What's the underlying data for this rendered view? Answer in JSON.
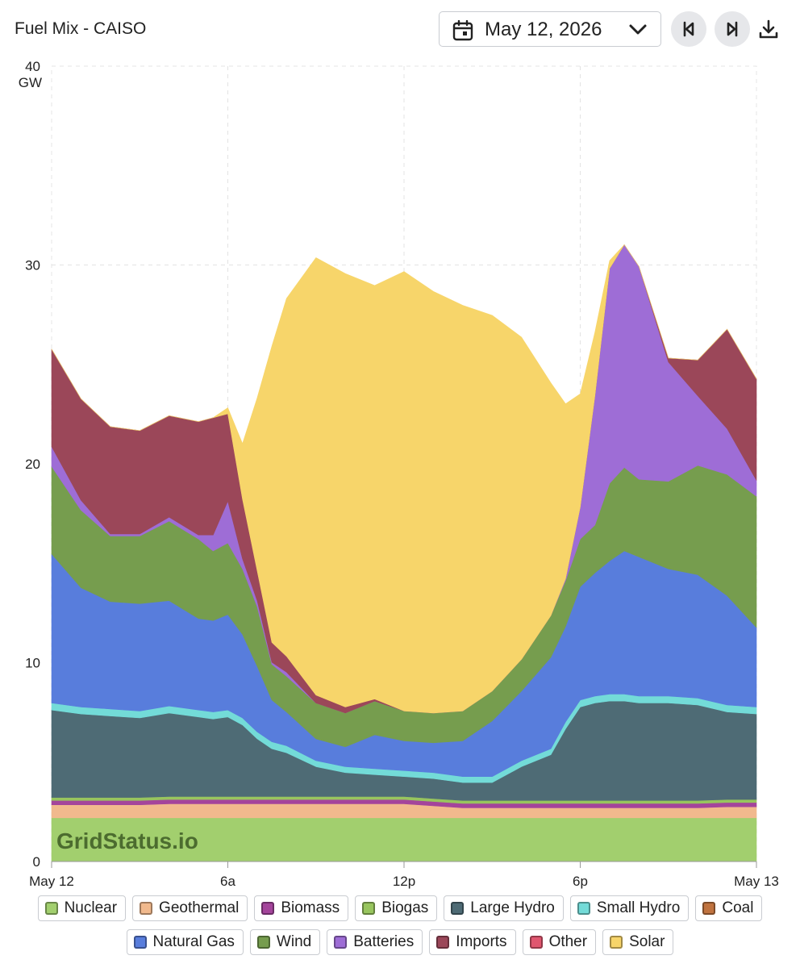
{
  "header": {
    "title": "Fuel Mix - CAISO",
    "date": "May 12, 2026"
  },
  "icons": {
    "calendar": "calendar-icon",
    "dropdown": "chevron-down-icon",
    "previous": "triangle-left-icon",
    "next": "triangle-right-icon",
    "download": "download-icon"
  },
  "watermark": "GridStatus.io",
  "chart_data": {
    "type": "area",
    "stacked": true,
    "title": "",
    "xlabel": "",
    "ylabel": "GW",
    "xlim": [
      0,
      24
    ],
    "ylim": [
      0,
      40
    ],
    "grid": true,
    "legend_position": "bottom",
    "y_ticks": [
      {
        "value": 0,
        "label": "0"
      },
      {
        "value": 10,
        "label": "10"
      },
      {
        "value": 20,
        "label": "20"
      },
      {
        "value": 30,
        "label": "30"
      },
      {
        "value": 40,
        "label": "40"
      }
    ],
    "y_unit_label": "GW",
    "x_ticks": [
      {
        "value": 0,
        "label": "May 12"
      },
      {
        "value": 6,
        "label": "6a"
      },
      {
        "value": 12,
        "label": "12p"
      },
      {
        "value": 18,
        "label": "6p"
      },
      {
        "value": 24,
        "label": "May 13"
      }
    ],
    "x": [
      0,
      1,
      2,
      3,
      4,
      5,
      5.5,
      6,
      6.5,
      7,
      7.5,
      8,
      9,
      10,
      11,
      12,
      13,
      14,
      15,
      16,
      17,
      17.5,
      18,
      18.5,
      19,
      19.5,
      20,
      21,
      22,
      23,
      24
    ],
    "series": [
      {
        "name": "Nuclear",
        "color": "#a2cf6e",
        "values": [
          2.2,
          2.2,
          2.2,
          2.2,
          2.2,
          2.2,
          2.2,
          2.2,
          2.2,
          2.2,
          2.2,
          2.2,
          2.2,
          2.2,
          2.2,
          2.2,
          2.2,
          2.2,
          2.2,
          2.2,
          2.2,
          2.2,
          2.2,
          2.2,
          2.2,
          2.2,
          2.2,
          2.2,
          2.2,
          2.2,
          2.2
        ]
      },
      {
        "name": "Geothermal",
        "color": "#f1b98d",
        "values": [
          0.65,
          0.65,
          0.65,
          0.65,
          0.7,
          0.7,
          0.7,
          0.7,
          0.7,
          0.7,
          0.7,
          0.7,
          0.7,
          0.7,
          0.7,
          0.7,
          0.6,
          0.5,
          0.5,
          0.5,
          0.5,
          0.5,
          0.5,
          0.5,
          0.5,
          0.5,
          0.5,
          0.5,
          0.5,
          0.55,
          0.55
        ]
      },
      {
        "name": "Biomass",
        "color": "#a4449b",
        "values": [
          0.22,
          0.22,
          0.22,
          0.22,
          0.22,
          0.22,
          0.22,
          0.22,
          0.22,
          0.22,
          0.22,
          0.22,
          0.22,
          0.22,
          0.22,
          0.22,
          0.22,
          0.22,
          0.22,
          0.22,
          0.22,
          0.22,
          0.22,
          0.22,
          0.22,
          0.22,
          0.22,
          0.22,
          0.22,
          0.22,
          0.22
        ]
      },
      {
        "name": "Biogas",
        "color": "#98c55e",
        "values": [
          0.15,
          0.15,
          0.15,
          0.15,
          0.15,
          0.15,
          0.15,
          0.15,
          0.15,
          0.15,
          0.15,
          0.15,
          0.15,
          0.15,
          0.15,
          0.15,
          0.15,
          0.15,
          0.15,
          0.15,
          0.15,
          0.15,
          0.15,
          0.15,
          0.15,
          0.15,
          0.15,
          0.15,
          0.15,
          0.15,
          0.15
        ]
      },
      {
        "name": "Large Hydro",
        "color": "#4e6b75",
        "values": [
          4.4,
          4.2,
          4.1,
          4.0,
          4.2,
          4.0,
          3.9,
          4.0,
          3.6,
          2.9,
          2.4,
          2.2,
          1.5,
          1.2,
          1.1,
          1.0,
          1.0,
          0.9,
          0.9,
          1.7,
          2.3,
          3.6,
          4.7,
          4.9,
          5.0,
          5.0,
          4.9,
          4.9,
          4.8,
          4.4,
          4.3
        ]
      },
      {
        "name": "Small Hydro",
        "color": "#73dbd8",
        "values": [
          0.35,
          0.35,
          0.35,
          0.35,
          0.35,
          0.35,
          0.35,
          0.35,
          0.35,
          0.35,
          0.35,
          0.35,
          0.3,
          0.3,
          0.3,
          0.3,
          0.3,
          0.3,
          0.3,
          0.3,
          0.3,
          0.35,
          0.35,
          0.35,
          0.35,
          0.35,
          0.35,
          0.35,
          0.35,
          0.35,
          0.35
        ]
      },
      {
        "name": "Coal",
        "color": "#c0733f",
        "values": [
          0,
          0,
          0,
          0,
          0,
          0,
          0,
          0,
          0,
          0,
          0,
          0,
          0,
          0,
          0,
          0,
          0,
          0,
          0,
          0,
          0,
          0,
          0,
          0,
          0,
          0,
          0,
          0,
          0,
          0,
          0
        ]
      },
      {
        "name": "Natural Gas",
        "color": "#587ddc",
        "values": [
          7.5,
          6.0,
          5.4,
          5.4,
          5.3,
          4.6,
          4.6,
          4.8,
          4.2,
          3.3,
          2.1,
          1.7,
          1.1,
          1.0,
          1.7,
          1.5,
          1.5,
          1.8,
          2.8,
          3.5,
          4.6,
          4.8,
          5.7,
          6.2,
          6.7,
          7.2,
          7.0,
          6.4,
          6.2,
          5.5,
          4.0
        ]
      },
      {
        "name": "Wind",
        "color": "#769d4e",
        "values": [
          4.4,
          3.9,
          3.3,
          3.4,
          4.0,
          4.0,
          3.5,
          3.6,
          3.3,
          3.0,
          1.8,
          1.8,
          1.8,
          1.7,
          1.7,
          1.5,
          1.5,
          1.5,
          1.5,
          1.6,
          2.1,
          2.3,
          2.4,
          2.4,
          3.9,
          4.2,
          3.9,
          4.4,
          5.5,
          6.1,
          6.6
        ]
      },
      {
        "name": "Batteries",
        "color": "#9e6dd6",
        "values": [
          1.0,
          0.5,
          0.1,
          0.1,
          0.2,
          0.2,
          0.8,
          2.1,
          0.5,
          0.3,
          0.1,
          0.2,
          0,
          0,
          0,
          0,
          0,
          0,
          0,
          0,
          0,
          0.1,
          1.6,
          6.5,
          10.8,
          11.2,
          10.7,
          6.0,
          3.5,
          2.3,
          0.8
        ]
      },
      {
        "name": "Imports",
        "color": "#9b4759",
        "values": [
          4.9,
          5.1,
          5.4,
          5.2,
          5.1,
          5.7,
          5.9,
          4.4,
          3.0,
          1.5,
          1.0,
          0.8,
          0.4,
          0.3,
          0.1,
          0,
          0,
          0,
          0,
          0,
          0,
          0,
          0,
          0,
          0,
          0,
          0,
          0.2,
          1.8,
          5.0,
          5.1
        ]
      },
      {
        "name": "Other",
        "color": "#e0566f",
        "values": [
          0,
          0,
          0,
          0,
          0,
          0,
          0,
          0,
          0,
          0,
          0,
          0,
          0,
          0,
          0,
          0,
          0,
          0,
          0,
          0,
          0,
          0,
          0,
          0,
          0,
          0,
          0,
          0,
          0,
          0,
          0
        ]
      },
      {
        "name": "Solar",
        "color": "#f7d56a",
        "values": [
          0,
          0,
          0,
          0,
          0,
          0,
          0,
          0.3,
          2.8,
          8.7,
          14.9,
          18.0,
          22.0,
          21.8,
          20.8,
          22.1,
          21.2,
          20.4,
          18.9,
          16.2,
          11.7,
          8.8,
          5.7,
          3.2,
          0.4,
          0,
          0,
          0,
          0,
          0,
          0
        ]
      }
    ]
  },
  "legend": {
    "rows": [
      [
        {
          "label": "Nuclear",
          "color": "#a2cf6e"
        },
        {
          "label": "Geothermal",
          "color": "#f1b98d"
        },
        {
          "label": "Biomass",
          "color": "#a4449b"
        },
        {
          "label": "Biogas",
          "color": "#98c55e"
        },
        {
          "label": "Large Hydro",
          "color": "#4e6b75"
        },
        {
          "label": "Small Hydro",
          "color": "#73dbd8"
        },
        {
          "label": "Coal",
          "color": "#c0733f"
        }
      ],
      [
        {
          "label": "Natural Gas",
          "color": "#587ddc"
        },
        {
          "label": "Wind",
          "color": "#769d4e"
        },
        {
          "label": "Batteries",
          "color": "#9e6dd6"
        },
        {
          "label": "Imports",
          "color": "#9b4759"
        },
        {
          "label": "Other",
          "color": "#e0566f"
        },
        {
          "label": "Solar",
          "color": "#f7d56a"
        }
      ]
    ]
  }
}
